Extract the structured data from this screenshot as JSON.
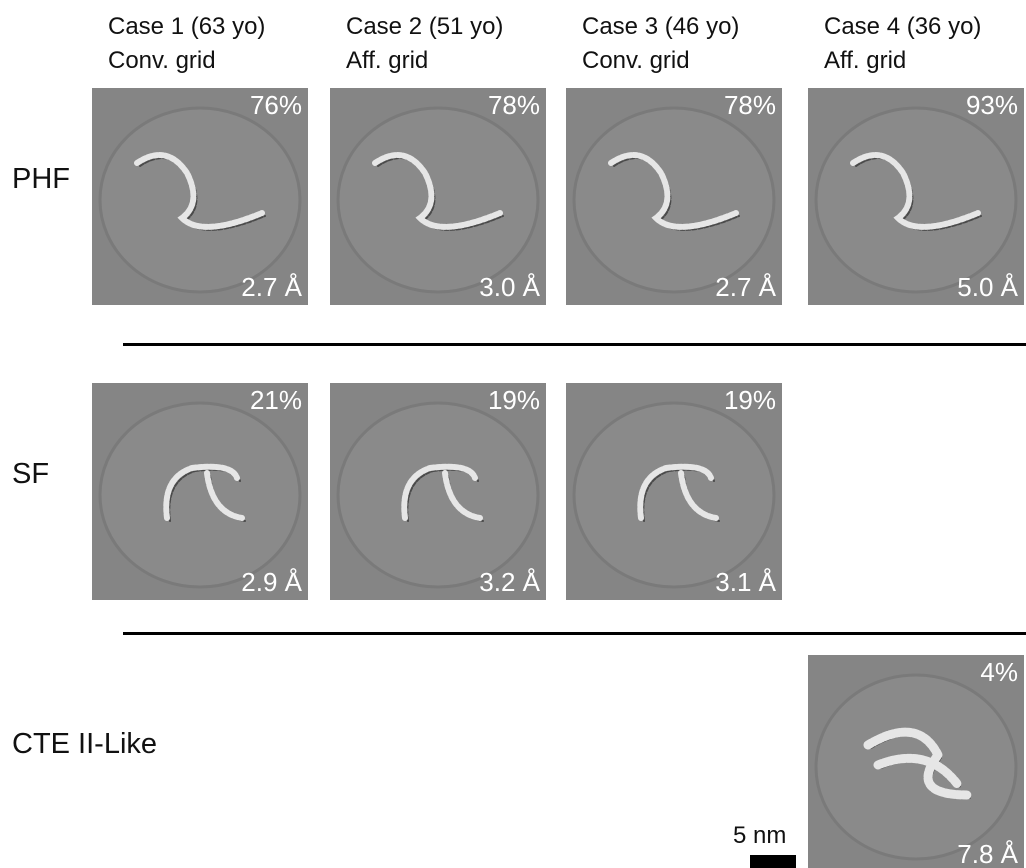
{
  "columns": [
    {
      "case": "Case 1 (63 yo)",
      "grid": "Conv. grid"
    },
    {
      "case": "Case 2 (51 yo)",
      "grid": "Aff. grid"
    },
    {
      "case": "Case 3 (46 yo)",
      "grid": "Conv. grid"
    },
    {
      "case": "Case 4 (36 yo)",
      "grid": "Aff. grid"
    }
  ],
  "rows": [
    {
      "label": "PHF",
      "panels": [
        {
          "percent": "76%",
          "resolution": "2.7 Å"
        },
        {
          "percent": "78%",
          "resolution": "3.0 Å"
        },
        {
          "percent": "78%",
          "resolution": "2.7 Å"
        },
        {
          "percent": "93%",
          "resolution": "5.0 Å"
        }
      ]
    },
    {
      "label": "SF",
      "panels": [
        {
          "percent": "21%",
          "resolution": "2.9 Å"
        },
        {
          "percent": "19%",
          "resolution": "3.2 Å"
        },
        {
          "percent": "19%",
          "resolution": "3.1 Å"
        },
        null
      ]
    },
    {
      "label": "CTE II-Like",
      "panels": [
        null,
        null,
        null,
        {
          "percent": "4%",
          "resolution": "7.8 Å"
        }
      ]
    }
  ],
  "scale_bar": "5 nm"
}
